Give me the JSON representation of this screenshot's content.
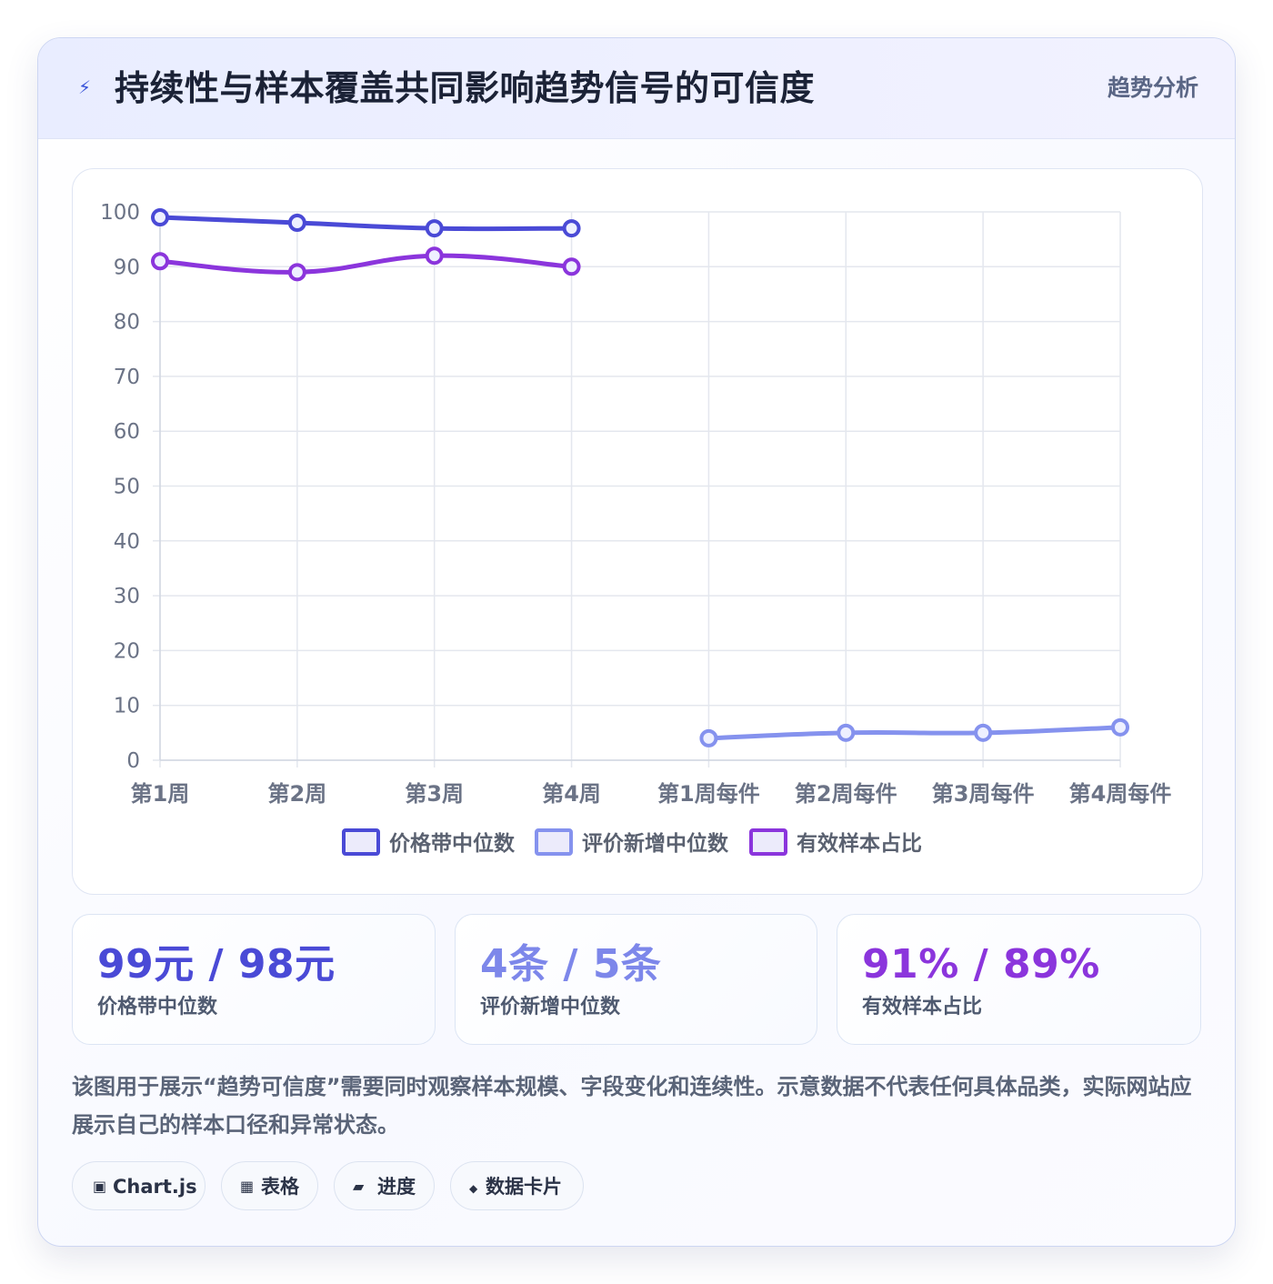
{
  "header": {
    "icon": "lightning-icon",
    "title": "持续性与样本覆盖共同影响趋势信号的可信度",
    "tag": "趋势分析"
  },
  "chart_data": {
    "type": "line",
    "title": "",
    "xlabel": "",
    "ylabel": "",
    "categories": [
      "第1周",
      "第2周",
      "第3周",
      "第4周",
      "第1周每件",
      "第2周每件",
      "第3周每件",
      "第4周每件"
    ],
    "ylim": [
      0,
      100
    ],
    "yticks": [
      0,
      10,
      20,
      30,
      40,
      50,
      60,
      70,
      80,
      90,
      100
    ],
    "grid": true,
    "legend_position": "bottom",
    "series": [
      {
        "name": "价格带中位数",
        "color": "#4a4ad6",
        "values": [
          99,
          98,
          97,
          97,
          null,
          null,
          null,
          null
        ]
      },
      {
        "name": "评价新增中位数",
        "color": "#8592ee",
        "values": [
          null,
          null,
          null,
          null,
          4,
          5,
          5,
          6
        ]
      },
      {
        "name": "有效样本占比",
        "color": "#8b35dc",
        "values": [
          91,
          89,
          92,
          90,
          null,
          null,
          null,
          null
        ]
      }
    ]
  },
  "stats": [
    {
      "value": "99元 / 98元",
      "label": "价格带中位数",
      "color": "#4a4ad6"
    },
    {
      "value": "4条 / 5条",
      "label": "评价新增中位数",
      "color": "#7d87ea"
    },
    {
      "value": "91% / 89%",
      "label": "有效样本占比",
      "color": "#8b35dc"
    }
  ],
  "note": "该图用于展示“趋势可信度”需要同时观察样本规模、字段变化和连续性。示意数据不代表任何具体品类，实际网站应展示自己的样本口径和异常状态。",
  "chips": [
    {
      "icon": "▣",
      "icon_name": "chart-icon",
      "label": "Chart.js"
    },
    {
      "icon": "▦",
      "icon_name": "table-icon",
      "label": "表格"
    },
    {
      "icon": "▰",
      "icon_name": "progress-icon",
      "label": "进度"
    },
    {
      "icon": "◆",
      "icon_name": "data-card-icon",
      "label": "数据卡片"
    }
  ]
}
